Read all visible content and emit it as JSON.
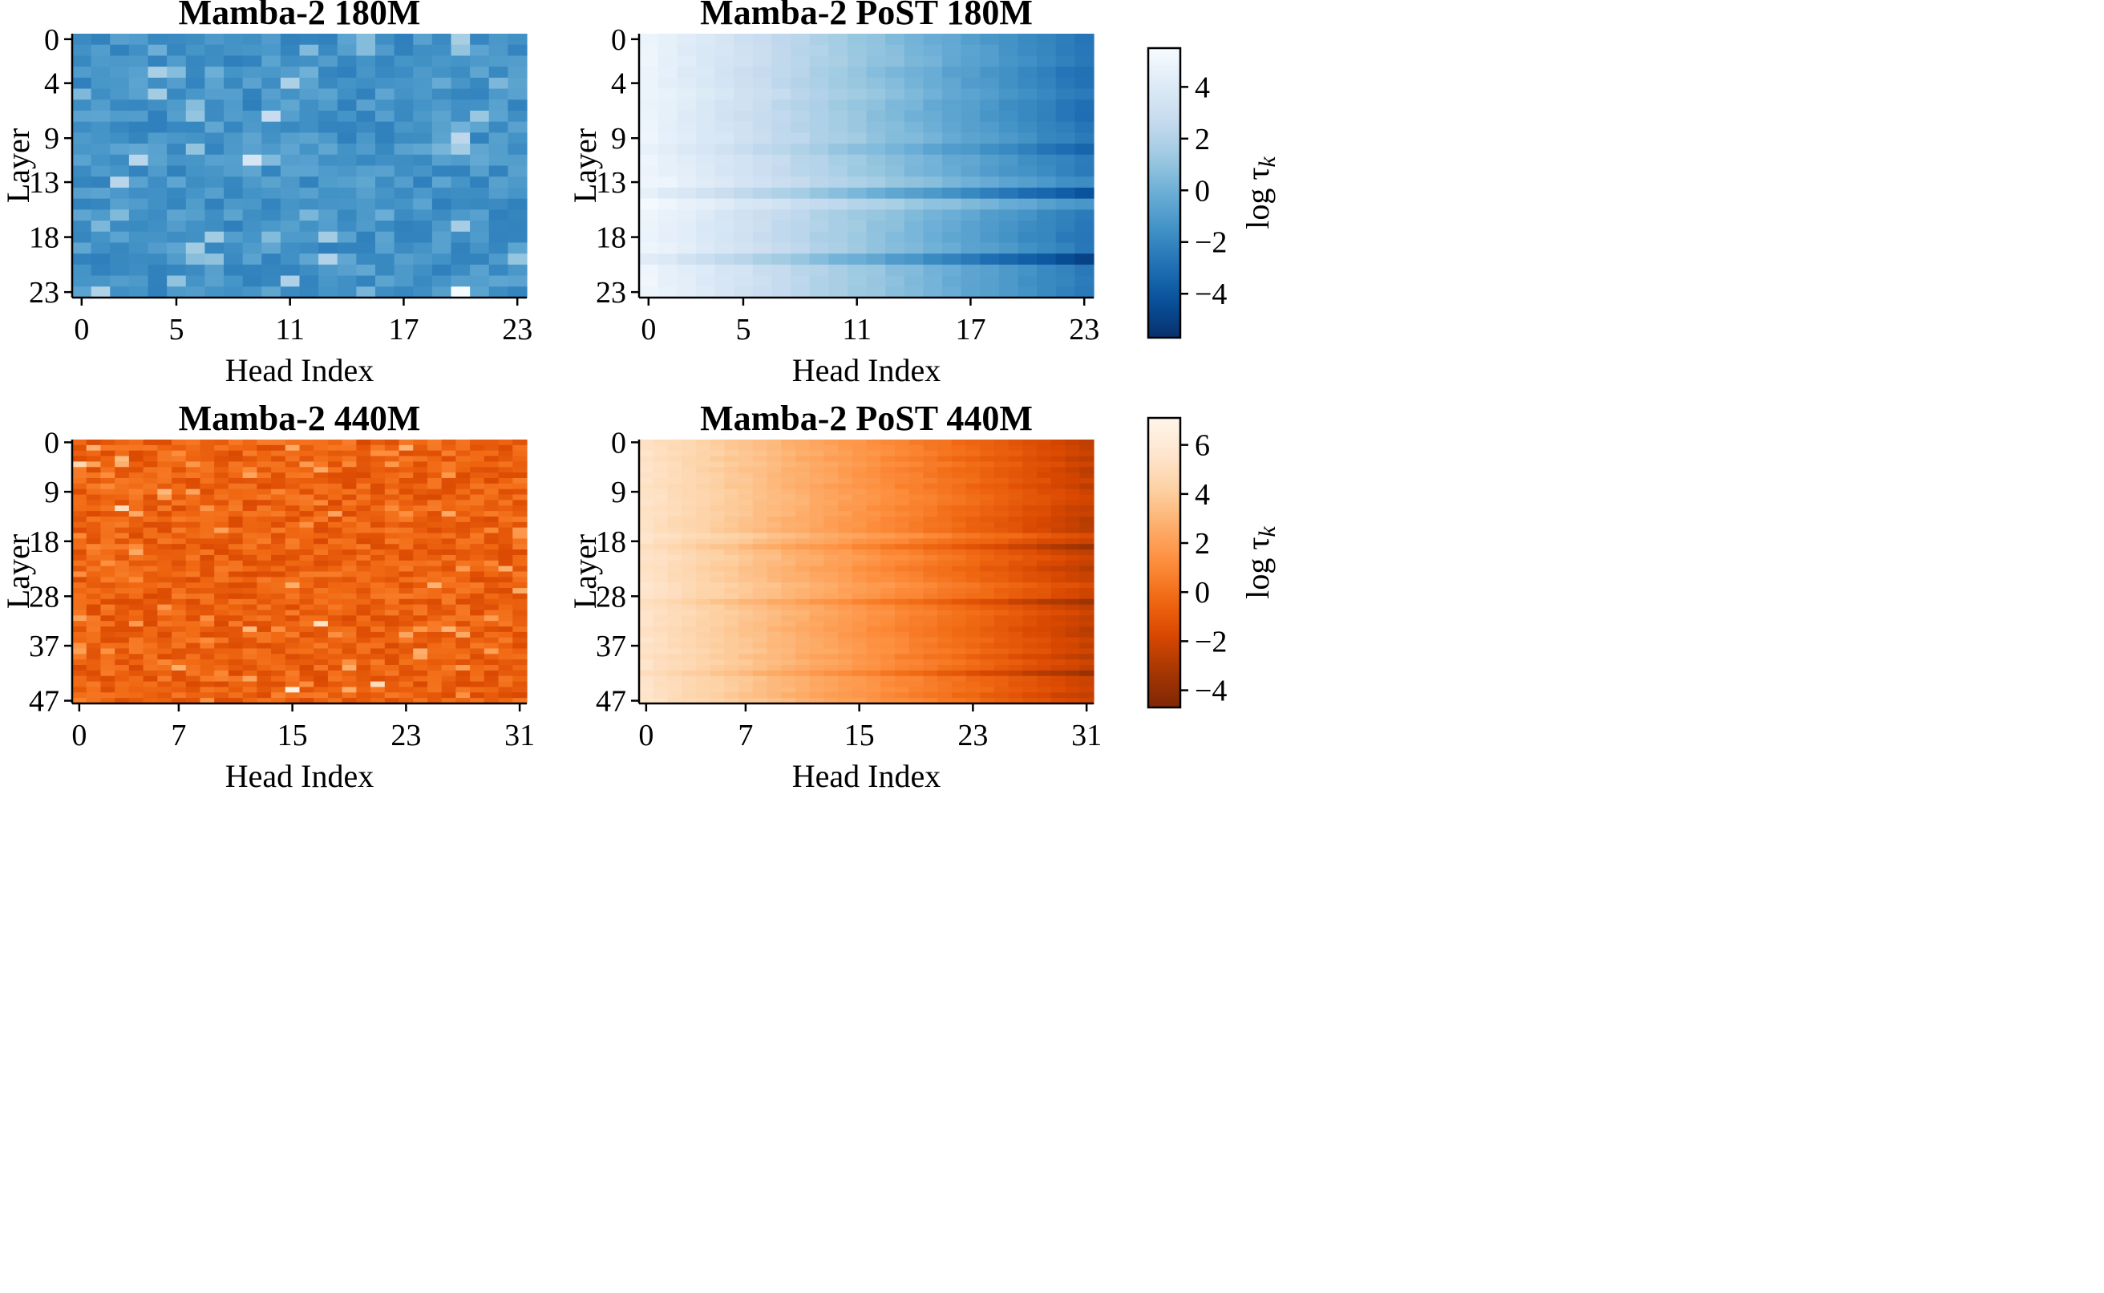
{
  "figure": {
    "colorbars": [
      {
        "label": "log τ",
        "label_sub": "k",
        "colormap": "Blues_r",
        "vmin": -5.7,
        "vmax": 5.5,
        "ticks": [
          4,
          2,
          0,
          -2,
          -4
        ],
        "tick_labels": [
          "4",
          "2",
          "0",
          "−2",
          "−4"
        ]
      },
      {
        "label": "log τ",
        "label_sub": "k",
        "colormap": "Oranges_r",
        "vmin": -4.7,
        "vmax": 7.1,
        "ticks": [
          6,
          4,
          2,
          0,
          -2,
          -4
        ],
        "tick_labels": [
          "6",
          "4",
          "2",
          "0",
          "−2",
          "−4"
        ]
      }
    ]
  },
  "chart_data": [
    {
      "type": "heatmap",
      "title": "Mamba-2 180M",
      "xlabel": "Head Index",
      "ylabel": "Layer",
      "n_layers": 24,
      "n_heads": 24,
      "x_ticks": [
        0,
        5,
        11,
        17,
        23
      ],
      "y_ticks": [
        0,
        4,
        9,
        13,
        18,
        23
      ],
      "colorbar": 0,
      "pattern": "random",
      "base_value": -1.4,
      "noise_amplitude": 0.9,
      "hotspots": [
        {
          "layer": 23,
          "head": 20,
          "value": 5.4
        },
        {
          "layer": 11,
          "head": 9,
          "value": 3.6
        },
        {
          "layer": 7,
          "head": 10,
          "value": 2.8
        },
        {
          "layer": 13,
          "head": 2,
          "value": 2.2
        }
      ],
      "seed": 11
    },
    {
      "type": "heatmap",
      "title": "Mamba-2 PoST 180M",
      "xlabel": "Head Index",
      "ylabel": "Layer",
      "n_layers": 24,
      "n_heads": 24,
      "x_ticks": [
        0,
        5,
        11,
        17,
        23
      ],
      "y_ticks": [
        0,
        4,
        9,
        13,
        18,
        23
      ],
      "colorbar": 0,
      "pattern": "gradient",
      "left_value": 4.9,
      "right_value": -2.6,
      "noise_amplitude": 0.25,
      "dark_layers": [
        {
          "layer": 3,
          "offset": -0.5
        },
        {
          "layer": 10,
          "offset": -0.7
        },
        {
          "layer": 14,
          "offset": -0.9
        },
        {
          "layer": 20,
          "offset": -1.6
        }
      ],
      "light_layers": [
        {
          "layer": 13,
          "offset": 0.7
        },
        {
          "layer": 15,
          "offset": 0.8
        }
      ],
      "seed": 23
    },
    {
      "type": "heatmap",
      "title": "Mamba-2 440M",
      "xlabel": "Head Index",
      "ylabel": "Layer",
      "n_layers": 48,
      "n_heads": 32,
      "x_ticks": [
        0,
        7,
        15,
        23,
        31
      ],
      "y_ticks": [
        0,
        9,
        18,
        28,
        37,
        47
      ],
      "colorbar": 1,
      "pattern": "random",
      "base_value": -0.6,
      "noise_amplitude": 1.1,
      "hotspots": [
        {
          "layer": 45,
          "head": 15,
          "value": 6.6
        },
        {
          "layer": 33,
          "head": 17,
          "value": 5.4
        },
        {
          "layer": 44,
          "head": 21,
          "value": 5.0
        },
        {
          "layer": 12,
          "head": 3,
          "value": 5.2
        },
        {
          "layer": 4,
          "head": 0,
          "value": 4.6
        }
      ],
      "seed": 37
    },
    {
      "type": "heatmap",
      "title": "Mamba-2 PoST 440M",
      "xlabel": "Head Index",
      "ylabel": "Layer",
      "n_layers": 48,
      "n_heads": 32,
      "x_ticks": [
        0,
        7,
        15,
        23,
        31
      ],
      "y_ticks": [
        0,
        9,
        18,
        28,
        37,
        47
      ],
      "colorbar": 1,
      "pattern": "gradient",
      "left_value": 5.4,
      "right_value": -2.3,
      "noise_amplitude": 0.3,
      "dark_layers": [
        {
          "layer": 19,
          "offset": -0.8
        },
        {
          "layer": 29,
          "offset": -0.9
        },
        {
          "layer": 42,
          "offset": -1.2
        },
        {
          "layer": 23,
          "offset": -0.5
        }
      ],
      "light_layers": [
        {
          "layer": 17,
          "offset": 0.6
        },
        {
          "layer": 26,
          "offset": 0.6
        }
      ],
      "seed": 53
    }
  ]
}
